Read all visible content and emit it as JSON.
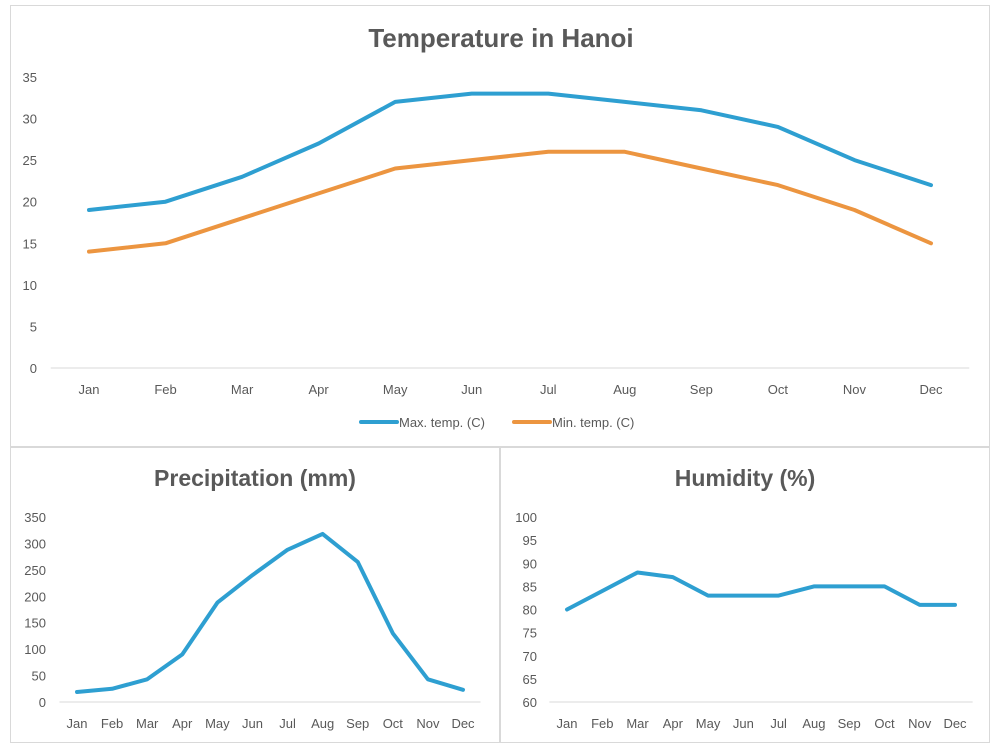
{
  "chart_data": [
    {
      "type": "line",
      "title": "Temperature in Hanoi",
      "categories": [
        "Jan",
        "Feb",
        "Mar",
        "Apr",
        "May",
        "Jun",
        "Jul",
        "Aug",
        "Sep",
        "Oct",
        "Nov",
        "Dec"
      ],
      "yticks": [
        0,
        5,
        10,
        15,
        20,
        25,
        30,
        35
      ],
      "ylim": [
        0,
        35
      ],
      "legend_position": "bottom",
      "grid": false,
      "series": [
        {
          "name": "Max. temp. (C)",
          "color": "#2e9fd1",
          "values": [
            19,
            20,
            23,
            27,
            32,
            33,
            33,
            32,
            31,
            29,
            25,
            22
          ]
        },
        {
          "name": "Min. temp. (C)",
          "color": "#ec9540",
          "values": [
            14,
            15,
            18,
            21,
            24,
            25,
            26,
            26,
            24,
            22,
            19,
            15
          ]
        }
      ]
    },
    {
      "type": "line",
      "title": "Precipitation (mm)",
      "categories": [
        "Jan",
        "Feb",
        "Mar",
        "Apr",
        "May",
        "Jun",
        "Jul",
        "Aug",
        "Sep",
        "Oct",
        "Nov",
        "Dec"
      ],
      "yticks": [
        0,
        50,
        100,
        150,
        200,
        250,
        300,
        350
      ],
      "ylim": [
        0,
        350
      ],
      "grid": false,
      "series": [
        {
          "color": "#2e9fd1",
          "values": [
            19,
            25,
            43,
            90,
            188,
            240,
            288,
            318,
            265,
            130,
            43,
            23
          ]
        }
      ]
    },
    {
      "type": "line",
      "title": "Humidity (%)",
      "categories": [
        "Jan",
        "Feb",
        "Mar",
        "Apr",
        "May",
        "Jun",
        "Jul",
        "Aug",
        "Sep",
        "Oct",
        "Nov",
        "Dec"
      ],
      "yticks": [
        60,
        65,
        70,
        75,
        80,
        85,
        90,
        95,
        100
      ],
      "ylim": [
        60,
        100
      ],
      "grid": false,
      "series": [
        {
          "color": "#2e9fd1",
          "values": [
            80,
            84,
            88,
            87,
            83,
            83,
            83,
            85,
            85,
            85,
            81,
            81
          ]
        }
      ]
    }
  ]
}
